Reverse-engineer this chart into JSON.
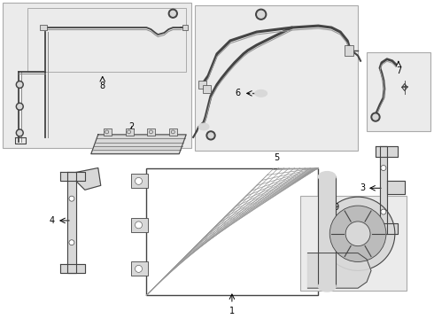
{
  "bg_color": "#ebebeb",
  "line_color": "#888888",
  "dark_line": "#444444",
  "white": "#ffffff",
  "box_bg": "#e8e8e8",
  "gray_fill": "#cccccc",
  "light_gray": "#d8d8d8"
}
